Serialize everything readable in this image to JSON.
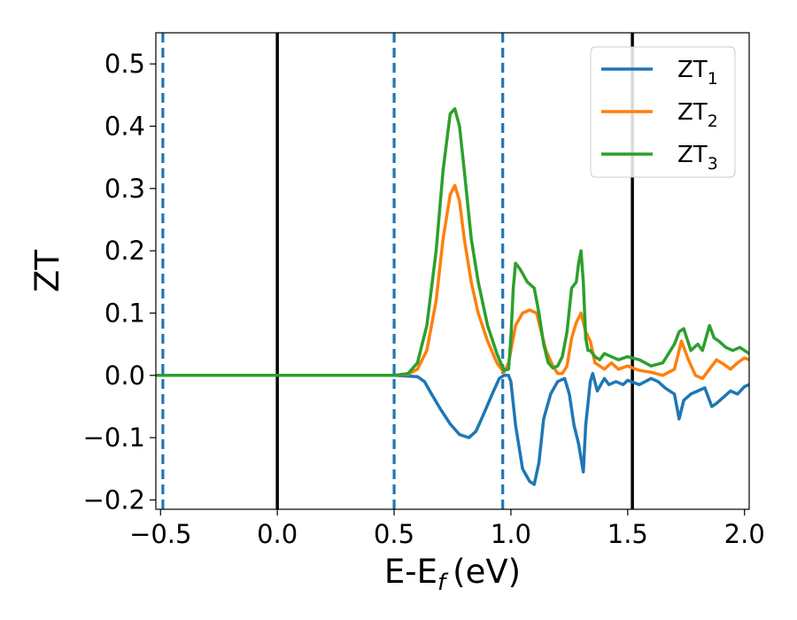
{
  "chart_data": {
    "type": "line",
    "xlabel": "E-E",
    "xlabel_sub": "f",
    "xlabel_unit": "(eV)",
    "ylabel": "ZT",
    "xlim": [
      -0.52,
      2.02
    ],
    "ylim": [
      -0.215,
      0.55
    ],
    "x_ticks": [
      -0.5,
      0.0,
      0.5,
      1.0,
      1.5,
      2.0
    ],
    "x_tick_labels": [
      "−0.5",
      "0.0",
      "0.5",
      "1.0",
      "1.5",
      "2.0"
    ],
    "y_ticks": [
      -0.2,
      -0.1,
      0.0,
      0.1,
      0.2,
      0.3,
      0.4,
      0.5
    ],
    "y_tick_labels": [
      "−0.2",
      "−0.1",
      "0.0",
      "0.1",
      "0.2",
      "0.3",
      "0.4",
      "0.5"
    ],
    "grid": false,
    "legend_position": "top-right",
    "vertical_lines": [
      {
        "x": -0.49,
        "style": "dashed",
        "color": "#1f77b4"
      },
      {
        "x": 0.0,
        "style": "solid",
        "color": "#000000"
      },
      {
        "x": 0.5,
        "style": "dashed",
        "color": "#1f77b4"
      },
      {
        "x": 0.965,
        "style": "dashed",
        "color": "#1f77b4"
      },
      {
        "x": 1.52,
        "style": "solid",
        "color": "#000000"
      }
    ],
    "series": [
      {
        "name": "ZT",
        "name_sub": "1",
        "color": "#1f77b4",
        "x": [
          -0.52,
          0.5,
          0.6,
          0.63,
          0.66,
          0.7,
          0.74,
          0.78,
          0.82,
          0.85,
          0.88,
          0.92,
          0.95,
          0.97,
          0.99,
          1.0,
          1.02,
          1.05,
          1.08,
          1.1,
          1.12,
          1.14,
          1.17,
          1.2,
          1.23,
          1.25,
          1.27,
          1.29,
          1.31,
          1.32,
          1.34,
          1.35,
          1.37,
          1.4,
          1.42,
          1.45,
          1.48,
          1.5,
          1.55,
          1.6,
          1.63,
          1.66,
          1.7,
          1.72,
          1.74,
          1.77,
          1.8,
          1.83,
          1.86,
          1.88,
          1.91,
          1.94,
          1.97,
          2.0,
          2.02
        ],
        "y": [
          0.0,
          0.0,
          -0.002,
          -0.01,
          -0.03,
          -0.055,
          -0.078,
          -0.095,
          -0.1,
          -0.09,
          -0.065,
          -0.03,
          -0.005,
          0.0,
          0.0,
          -0.01,
          -0.08,
          -0.15,
          -0.17,
          -0.175,
          -0.14,
          -0.07,
          -0.03,
          -0.01,
          -0.005,
          -0.03,
          -0.08,
          -0.11,
          -0.155,
          -0.08,
          -0.01,
          0.003,
          -0.025,
          -0.005,
          -0.015,
          -0.01,
          -0.015,
          -0.008,
          -0.015,
          -0.005,
          -0.01,
          -0.02,
          -0.03,
          -0.07,
          -0.04,
          -0.03,
          -0.025,
          -0.02,
          -0.05,
          -0.045,
          -0.035,
          -0.025,
          -0.03,
          -0.018,
          -0.015
        ]
      },
      {
        "name": "ZT",
        "name_sub": "2",
        "color": "#ff7f0e",
        "x": [
          -0.52,
          0.5,
          0.56,
          0.6,
          0.64,
          0.68,
          0.71,
          0.74,
          0.76,
          0.78,
          0.8,
          0.83,
          0.86,
          0.9,
          0.94,
          0.97,
          0.99,
          1.02,
          1.05,
          1.08,
          1.11,
          1.13,
          1.15,
          1.18,
          1.2,
          1.22,
          1.24,
          1.26,
          1.28,
          1.3,
          1.32,
          1.34,
          1.36,
          1.38,
          1.4,
          1.43,
          1.46,
          1.5,
          1.55,
          1.6,
          1.65,
          1.7,
          1.73,
          1.76,
          1.79,
          1.82,
          1.85,
          1.88,
          1.91,
          1.94,
          1.97,
          2.0,
          2.02
        ],
        "y": [
          0.0,
          0.0,
          0.002,
          0.01,
          0.04,
          0.12,
          0.22,
          0.29,
          0.305,
          0.28,
          0.22,
          0.15,
          0.1,
          0.055,
          0.02,
          0.005,
          0.02,
          0.08,
          0.1,
          0.105,
          0.1,
          0.07,
          0.04,
          0.015,
          0.003,
          0.003,
          0.015,
          0.06,
          0.085,
          0.1,
          0.07,
          0.055,
          0.02,
          0.015,
          0.01,
          0.02,
          0.01,
          0.015,
          0.008,
          0.005,
          0.0,
          0.01,
          0.055,
          0.025,
          0.0,
          -0.005,
          0.01,
          0.025,
          0.018,
          0.01,
          0.02,
          0.028,
          0.025
        ]
      },
      {
        "name": "ZT",
        "name_sub": "3",
        "color": "#2ca02c",
        "x": [
          -0.52,
          0.5,
          0.56,
          0.6,
          0.64,
          0.68,
          0.71,
          0.74,
          0.76,
          0.78,
          0.8,
          0.83,
          0.86,
          0.9,
          0.94,
          0.97,
          0.99,
          1.0,
          1.01,
          1.02,
          1.04,
          1.07,
          1.1,
          1.12,
          1.14,
          1.16,
          1.18,
          1.2,
          1.22,
          1.24,
          1.26,
          1.28,
          1.29,
          1.3,
          1.31,
          1.32,
          1.33,
          1.34,
          1.36,
          1.38,
          1.4,
          1.43,
          1.46,
          1.5,
          1.55,
          1.6,
          1.65,
          1.7,
          1.72,
          1.74,
          1.77,
          1.8,
          1.82,
          1.85,
          1.87,
          1.89,
          1.92,
          1.95,
          1.98,
          2.0,
          2.02
        ],
        "y": [
          0.0,
          0.0,
          0.003,
          0.02,
          0.08,
          0.2,
          0.33,
          0.42,
          0.428,
          0.4,
          0.33,
          0.22,
          0.15,
          0.08,
          0.035,
          0.008,
          0.01,
          0.06,
          0.14,
          0.18,
          0.17,
          0.15,
          0.14,
          0.1,
          0.05,
          0.02,
          0.012,
          0.015,
          0.03,
          0.07,
          0.14,
          0.15,
          0.18,
          0.2,
          0.15,
          0.06,
          0.04,
          0.04,
          0.03,
          0.025,
          0.035,
          0.03,
          0.025,
          0.03,
          0.025,
          0.015,
          0.02,
          0.05,
          0.07,
          0.075,
          0.04,
          0.05,
          0.04,
          0.08,
          0.06,
          0.055,
          0.045,
          0.04,
          0.045,
          0.04,
          0.035
        ]
      }
    ]
  }
}
